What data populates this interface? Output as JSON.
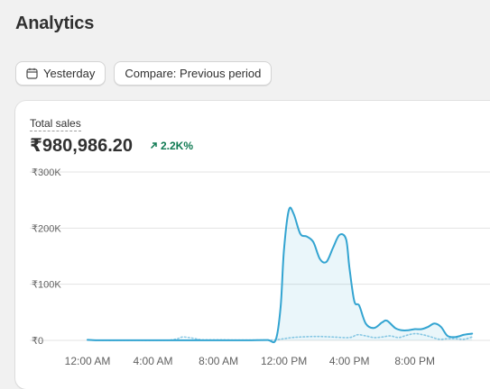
{
  "page": {
    "title": "Analytics"
  },
  "toolbar": {
    "date_range_label": "Yesterday",
    "compare_label": "Compare: Previous period",
    "date_icon": "calendar-icon"
  },
  "metric": {
    "label": "Total sales",
    "value": "₹980,986.20",
    "change": "2.2K%",
    "change_icon": "arrow-up-right-icon",
    "change_color": "#0f7a52"
  },
  "chart_data": {
    "type": "line",
    "title": "",
    "xlabel": "",
    "ylabel": "",
    "ylim": [
      0,
      300000
    ],
    "y_ticks": [
      0,
      100000,
      200000,
      300000
    ],
    "y_tick_labels": [
      "₹0",
      "₹100K",
      "₹200K",
      "₹300K"
    ],
    "x_ticks": [
      0,
      4,
      8,
      12,
      16,
      20
    ],
    "x_tick_labels": [
      "12:00 AM",
      "4:00 AM",
      "8:00 AM",
      "12:00 PM",
      "4:00 PM",
      "8:00 PM"
    ],
    "grid": true,
    "series": [
      {
        "style": "solid",
        "area": true,
        "color": "#33a4d1",
        "x": [
          0,
          0.5,
          1,
          2,
          3,
          4,
          5,
          6,
          7,
          8,
          9,
          10,
          11,
          11.5,
          11.8,
          12,
          12.3,
          12.6,
          13,
          13.4,
          13.8,
          14.2,
          14.6,
          15,
          15.4,
          15.8,
          16,
          16.3,
          16.6,
          17,
          17.5,
          18,
          18.3,
          18.8,
          19.2,
          19.6,
          20,
          20.4,
          20.8,
          21.2,
          21.6,
          22,
          22.5,
          23,
          23.5
        ],
        "y": [
          1000,
          300,
          200,
          200,
          200,
          200,
          200,
          200,
          200,
          200,
          200,
          300,
          600,
          1000,
          60000,
          160000,
          232000,
          225000,
          190000,
          185000,
          175000,
          145000,
          140000,
          165000,
          188000,
          180000,
          130000,
          70000,
          62000,
          30000,
          22000,
          32000,
          35000,
          22000,
          18000,
          18000,
          20000,
          20000,
          24000,
          30000,
          24000,
          8000,
          6000,
          10000,
          12000
        ]
      },
      {
        "style": "dotted",
        "area": false,
        "color": "#8fcbe6",
        "x": [
          0,
          1,
          2,
          3,
          4,
          5,
          5.5,
          5.8,
          6.2,
          6.6,
          7,
          8,
          9,
          10,
          11,
          11.5,
          12,
          12.5,
          13,
          14,
          15,
          16,
          16.5,
          17,
          17.5,
          18,
          18.5,
          19,
          19.5,
          20,
          20.5,
          21,
          21.5,
          22,
          22.5,
          23,
          23.5
        ],
        "y": [
          500,
          200,
          200,
          200,
          200,
          500,
          3000,
          6000,
          5000,
          3000,
          1000,
          1000,
          500,
          500,
          500,
          1000,
          3000,
          5000,
          6000,
          7000,
          6000,
          5000,
          10000,
          8000,
          5000,
          6000,
          8000,
          5000,
          9000,
          12000,
          10000,
          6000,
          2000,
          3000,
          3000,
          2000,
          6000
        ]
      }
    ]
  }
}
